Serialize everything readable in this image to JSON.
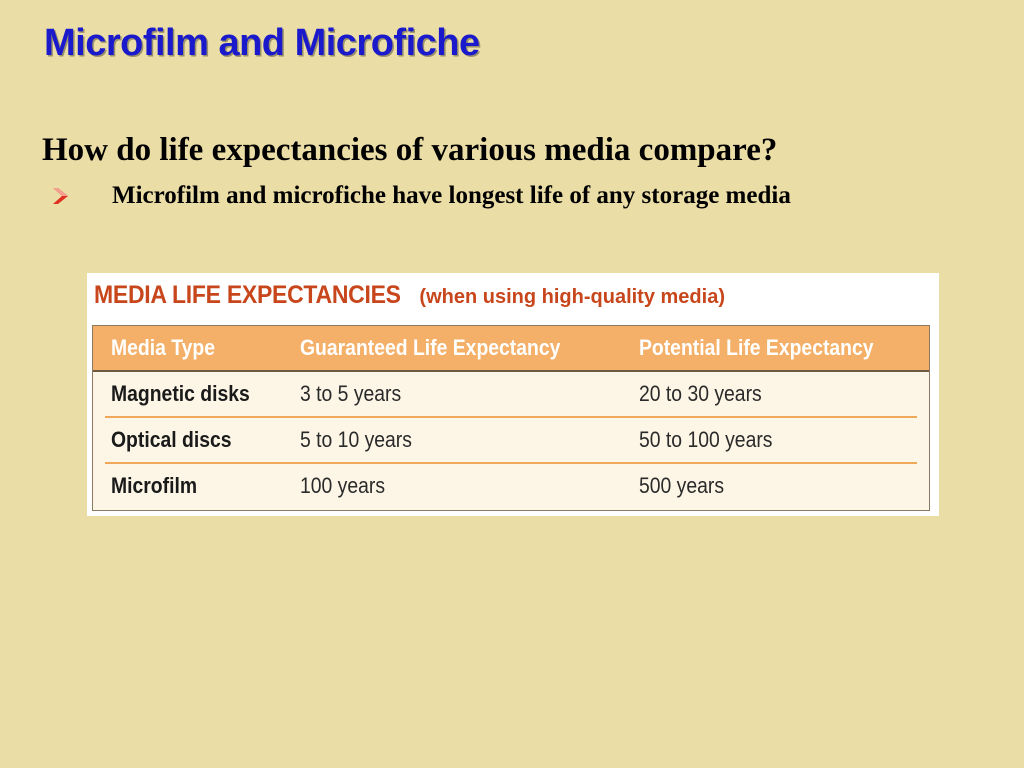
{
  "slide": {
    "title": "Microfilm and Microfiche",
    "question": "How do life expectancies of various media compare?",
    "bullet": {
      "icon": "arrow-bullet-icon",
      "text": "Microfilm and microfiche have longest life of any storage media"
    }
  },
  "figure": {
    "title": "MEDIA LIFE EXPECTANCIES",
    "subtitle": "(when using high-quality media)",
    "columns": [
      "Media Type",
      "Guaranteed Life Expectancy",
      "Potential Life Expectancy"
    ],
    "rows": [
      [
        "Magnetic disks",
        "3 to 5 years",
        "20 to 30 years"
      ],
      [
        "Optical discs",
        "5 to 10 years",
        "50 to 100 years"
      ],
      [
        "Microfilm",
        "100 years",
        "500 years"
      ]
    ]
  },
  "colors": {
    "background": "#ebdda6",
    "title": "#1a1acc",
    "bullet_arrow": "#e03020",
    "figure_heading": "#c8461c",
    "table_header": "#f4b068",
    "table_body": "#fdf6e6",
    "row_separator": "#f0a85a"
  }
}
